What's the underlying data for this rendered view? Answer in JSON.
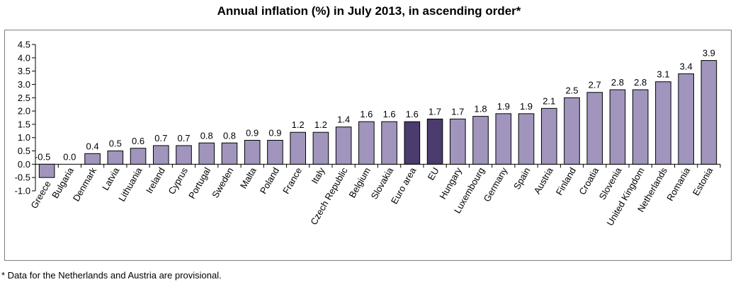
{
  "title": "Annual inflation (%) in July 2013, in ascending order*",
  "footnote": "* Data for the Netherlands and Austria are provisional.",
  "colors": {
    "bar": "#a195bd",
    "highlight_bar": "#4b3b6e",
    "bar_stroke": "#000000"
  },
  "chart_data": {
    "type": "bar",
    "title": "Annual inflation (%) in July 2013, in ascending order*",
    "xlabel": "",
    "ylabel": "",
    "ylim": [
      -1.0,
      4.5
    ],
    "yticks": [
      "4.5",
      "4.0",
      "3.5",
      "3.0",
      "2.5",
      "2.0",
      "1.5",
      "1.0",
      "0.5",
      "0.0",
      "-0.5",
      "-1.0"
    ],
    "grid": false,
    "legend": "none",
    "categories": [
      "Greece",
      "Bulgaria",
      "Denmark",
      "Latvia",
      "Lithuania",
      "Ireland",
      "Cyprus",
      "Portugal",
      "Sweden",
      "Malta",
      "Poland",
      "France",
      "Italy",
      "Czech Republic",
      "Belgium",
      "Slovakia",
      "Euro area",
      "EU",
      "Hungary",
      "Luxembourg",
      "Germany",
      "Spain",
      "Austria",
      "Finland",
      "Croatia",
      "Slovenia",
      "United Kingdom",
      "Netherlands",
      "Romania",
      "Estonia"
    ],
    "values": [
      -0.5,
      0.0,
      0.4,
      0.5,
      0.6,
      0.7,
      0.7,
      0.8,
      0.8,
      0.9,
      0.9,
      1.2,
      1.2,
      1.4,
      1.6,
      1.6,
      1.6,
      1.7,
      1.7,
      1.8,
      1.9,
      1.9,
      2.1,
      2.5,
      2.7,
      2.8,
      2.8,
      3.1,
      3.4,
      3.9
    ],
    "value_labels": [
      "-0.5",
      "0.0",
      "0.4",
      "0.5",
      "0.6",
      "0.7",
      "0.7",
      "0.8",
      "0.8",
      "0.9",
      "0.9",
      "1.2",
      "1.2",
      "1.4",
      "1.6",
      "1.6",
      "1.6",
      "1.7",
      "1.7",
      "1.8",
      "1.9",
      "1.9",
      "2.1",
      "2.5",
      "2.7",
      "2.8",
      "2.8",
      "3.1",
      "3.4",
      "3.9"
    ],
    "highlighted": [
      "Euro area",
      "EU"
    ]
  }
}
